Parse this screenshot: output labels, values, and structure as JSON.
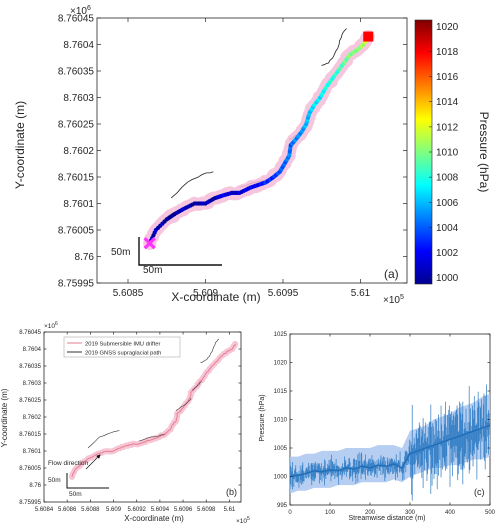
{
  "chart_data": [
    {
      "id": "panel-a",
      "type": "scatter",
      "panel_label": "(a)",
      "xlabel": "X-coordinate (m)",
      "ylabel": "Y-coordinate (m)",
      "x_multiplier": "×10",
      "x_multiplier_exp": "5",
      "y_multiplier": "×10",
      "y_multiplier_exp": "6",
      "xlim": [
        5.6083,
        5.6103
      ],
      "ylim": [
        8.75995,
        8.76045
      ],
      "x_ticks": [
        5.6085,
        5.609,
        5.6095,
        5.61
      ],
      "x_tick_labels": [
        "5.6085",
        "5.609",
        "5.6095",
        "5.61"
      ],
      "y_ticks": [
        8.75995,
        8.76,
        8.76005,
        8.7601,
        8.76015,
        8.7602,
        8.76025,
        8.7603,
        8.76035,
        8.7604,
        8.76045
      ],
      "y_tick_labels": [
        "8.75995",
        "8.76",
        "8.76005",
        "8.7601",
        "8.76015",
        "8.7602",
        "8.76025",
        "8.7603",
        "8.76035",
        "8.7604",
        "8.76045"
      ],
      "colorbar": {
        "label": "Pressure (hPa)",
        "min": 999.5,
        "max": 1020.5,
        "ticks": [
          1000,
          1002,
          1004,
          1006,
          1008,
          1010,
          1012,
          1014,
          1016,
          1018,
          1020
        ]
      },
      "scale_bar_x_label": "50m",
      "scale_bar_y_label": "50m",
      "start_marker": {
        "x": 5.60864,
        "y": 8.760025
      },
      "end_marker": {
        "x": 5.61005,
        "y": 8.760415
      },
      "path": [
        [
          5.60864,
          8.760025
        ],
        [
          5.60868,
          8.76005
        ],
        [
          5.60875,
          8.76007
        ],
        [
          5.6088,
          8.76008
        ],
        [
          5.60886,
          8.76009
        ],
        [
          5.60893,
          8.7601
        ],
        [
          5.609,
          8.7601
        ],
        [
          5.60906,
          8.76011
        ],
        [
          5.60911,
          8.760115
        ],
        [
          5.60917,
          8.76012
        ],
        [
          5.60922,
          8.76012
        ],
        [
          5.60929,
          8.76013
        ],
        [
          5.60934,
          8.760135
        ],
        [
          5.60939,
          8.76014
        ],
        [
          5.60944,
          8.76015
        ],
        [
          5.60948,
          8.76016
        ],
        [
          5.60951,
          8.760175
        ],
        [
          5.60954,
          8.76019
        ],
        [
          5.60955,
          8.76021
        ],
        [
          5.60958,
          8.76022
        ],
        [
          5.60962,
          8.760235
        ],
        [
          5.60965,
          8.76025
        ],
        [
          5.60967,
          8.76027
        ],
        [
          5.6097,
          8.760285
        ],
        [
          5.60974,
          8.7603
        ],
        [
          5.60978,
          8.76032
        ],
        [
          5.60983,
          8.76034
        ],
        [
          5.60988,
          8.76036
        ],
        [
          5.60993,
          8.76038
        ],
        [
          5.60998,
          8.76039
        ],
        [
          5.61002,
          8.7604
        ],
        [
          5.61005,
          8.760415
        ]
      ],
      "pressure": [
        1000,
        1001,
        1000,
        1000,
        1001,
        1000,
        1001,
        1000,
        1002,
        1001,
        1001,
        1002,
        1002,
        1003,
        1003,
        1004,
        1004,
        1005,
        1004,
        1005,
        1005,
        1006,
        1006,
        1007,
        1007,
        1008,
        1008,
        1009,
        1010,
        1010,
        1011,
        1012
      ],
      "gnss_segments": [
        [
          [
            5.60878,
            8.76011
          ],
          [
            5.60888,
            8.76014
          ],
          [
            5.60898,
            8.760155
          ],
          [
            5.60905,
            8.76016
          ]
        ],
        [
          [
            5.60922,
            8.76013
          ],
          [
            5.60932,
            8.76014
          ],
          [
            5.60939,
            8.760145
          ],
          [
            5.60944,
            8.76015
          ]
        ],
        [
          [
            5.60954,
            8.76022
          ],
          [
            5.60959,
            8.76023
          ],
          [
            5.60963,
            8.76024
          ],
          [
            5.60967,
            8.760255
          ]
        ],
        [
          [
            5.60968,
            8.76028
          ],
          [
            5.60972,
            8.76029
          ],
          [
            5.60976,
            8.760305
          ]
        ],
        [
          [
            5.60975,
            8.76036
          ],
          [
            5.60979,
            8.760365
          ],
          [
            5.60983,
            8.76038
          ],
          [
            5.60986,
            8.7604
          ],
          [
            5.60988,
            8.76042
          ],
          [
            5.60991,
            8.76043
          ]
        ]
      ]
    },
    {
      "id": "panel-b",
      "type": "line",
      "panel_label": "(b)",
      "xlabel": "X-coordinate (m)",
      "ylabel": "Y-coordinate (m)",
      "x_multiplier": "×10",
      "x_multiplier_exp": "5",
      "y_multiplier": "×10",
      "y_multiplier_exp": "6",
      "xlim": [
        5.6084,
        5.6101
      ],
      "ylim": [
        8.75995,
        8.76045
      ],
      "x_ticks": [
        5.6084,
        5.6086,
        5.6088,
        5.609,
        5.6092,
        5.6094,
        5.6096,
        5.6098,
        5.61
      ],
      "x_tick_labels": [
        "5.6084",
        "5.6086",
        "5.6088",
        "5.609",
        "5.6092",
        "5.6094",
        "5.6096",
        "5.6098",
        "5.61"
      ],
      "y_ticks": [
        8.75995,
        8.76,
        8.76005,
        8.7601,
        8.76015,
        8.7602,
        8.76025,
        8.7603,
        8.76035,
        8.7604,
        8.76045
      ],
      "y_tick_labels": [
        "8.75995",
        "8.76",
        "8.76005",
        "8.7601",
        "8.76015",
        "8.7602",
        "8.76025",
        "8.7603",
        "8.76035",
        "8.7604",
        "8.76045"
      ],
      "legend": [
        {
          "name": "2019 Submersible IMU drifter",
          "color": "#e8788a"
        },
        {
          "name": "2019 GNSS supraglacial path",
          "color": "#333333"
        }
      ],
      "annotation": "Flow direction",
      "scale_bar_x_label": "50m",
      "scale_bar_y_label": "50m"
    },
    {
      "id": "panel-c",
      "type": "line",
      "panel_label": "(c)",
      "xlabel": "Streamwise distance (m)",
      "ylabel": "Pressure (hPa)",
      "xlim": [
        0,
        500
      ],
      "ylim": [
        995,
        1025
      ],
      "x_ticks": [
        0,
        100,
        200,
        300,
        400,
        500
      ],
      "y_ticks": [
        995,
        1000,
        1005,
        1010,
        1015,
        1020,
        1025
      ],
      "x": [
        0,
        20,
        40,
        60,
        80,
        100,
        120,
        140,
        160,
        180,
        200,
        220,
        240,
        260,
        280,
        300,
        320,
        340,
        360,
        380,
        400,
        420,
        440,
        460,
        480,
        500
      ],
      "mean": [
        1000,
        1000.2,
        1000.5,
        1001,
        1000.8,
        1001.2,
        1001,
        1001.5,
        1001.3,
        1001.8,
        1001.5,
        1002,
        1001.8,
        1002.2,
        1001.5,
        1004,
        1004.5,
        1005,
        1005.5,
        1006,
        1006.5,
        1007,
        1007.5,
        1008,
        1008.5,
        1009
      ],
      "band_low": [
        997,
        997.5,
        997.5,
        998,
        998,
        998,
        998.5,
        998.5,
        998.5,
        999,
        999,
        999,
        999,
        999.5,
        999,
        1000,
        1000.5,
        1001,
        1001.5,
        1001.5,
        1002,
        1002,
        1002.5,
        1003,
        1003,
        1003.5
      ],
      "band_high": [
        1003.5,
        1003.5,
        1004,
        1004,
        1004.5,
        1004.5,
        1004.5,
        1005,
        1005,
        1005,
        1005,
        1005.5,
        1005.5,
        1005.5,
        1005,
        1008,
        1008.5,
        1009,
        1010,
        1010.5,
        1011,
        1012,
        1012.5,
        1013,
        1014,
        1014.5
      ]
    }
  ]
}
